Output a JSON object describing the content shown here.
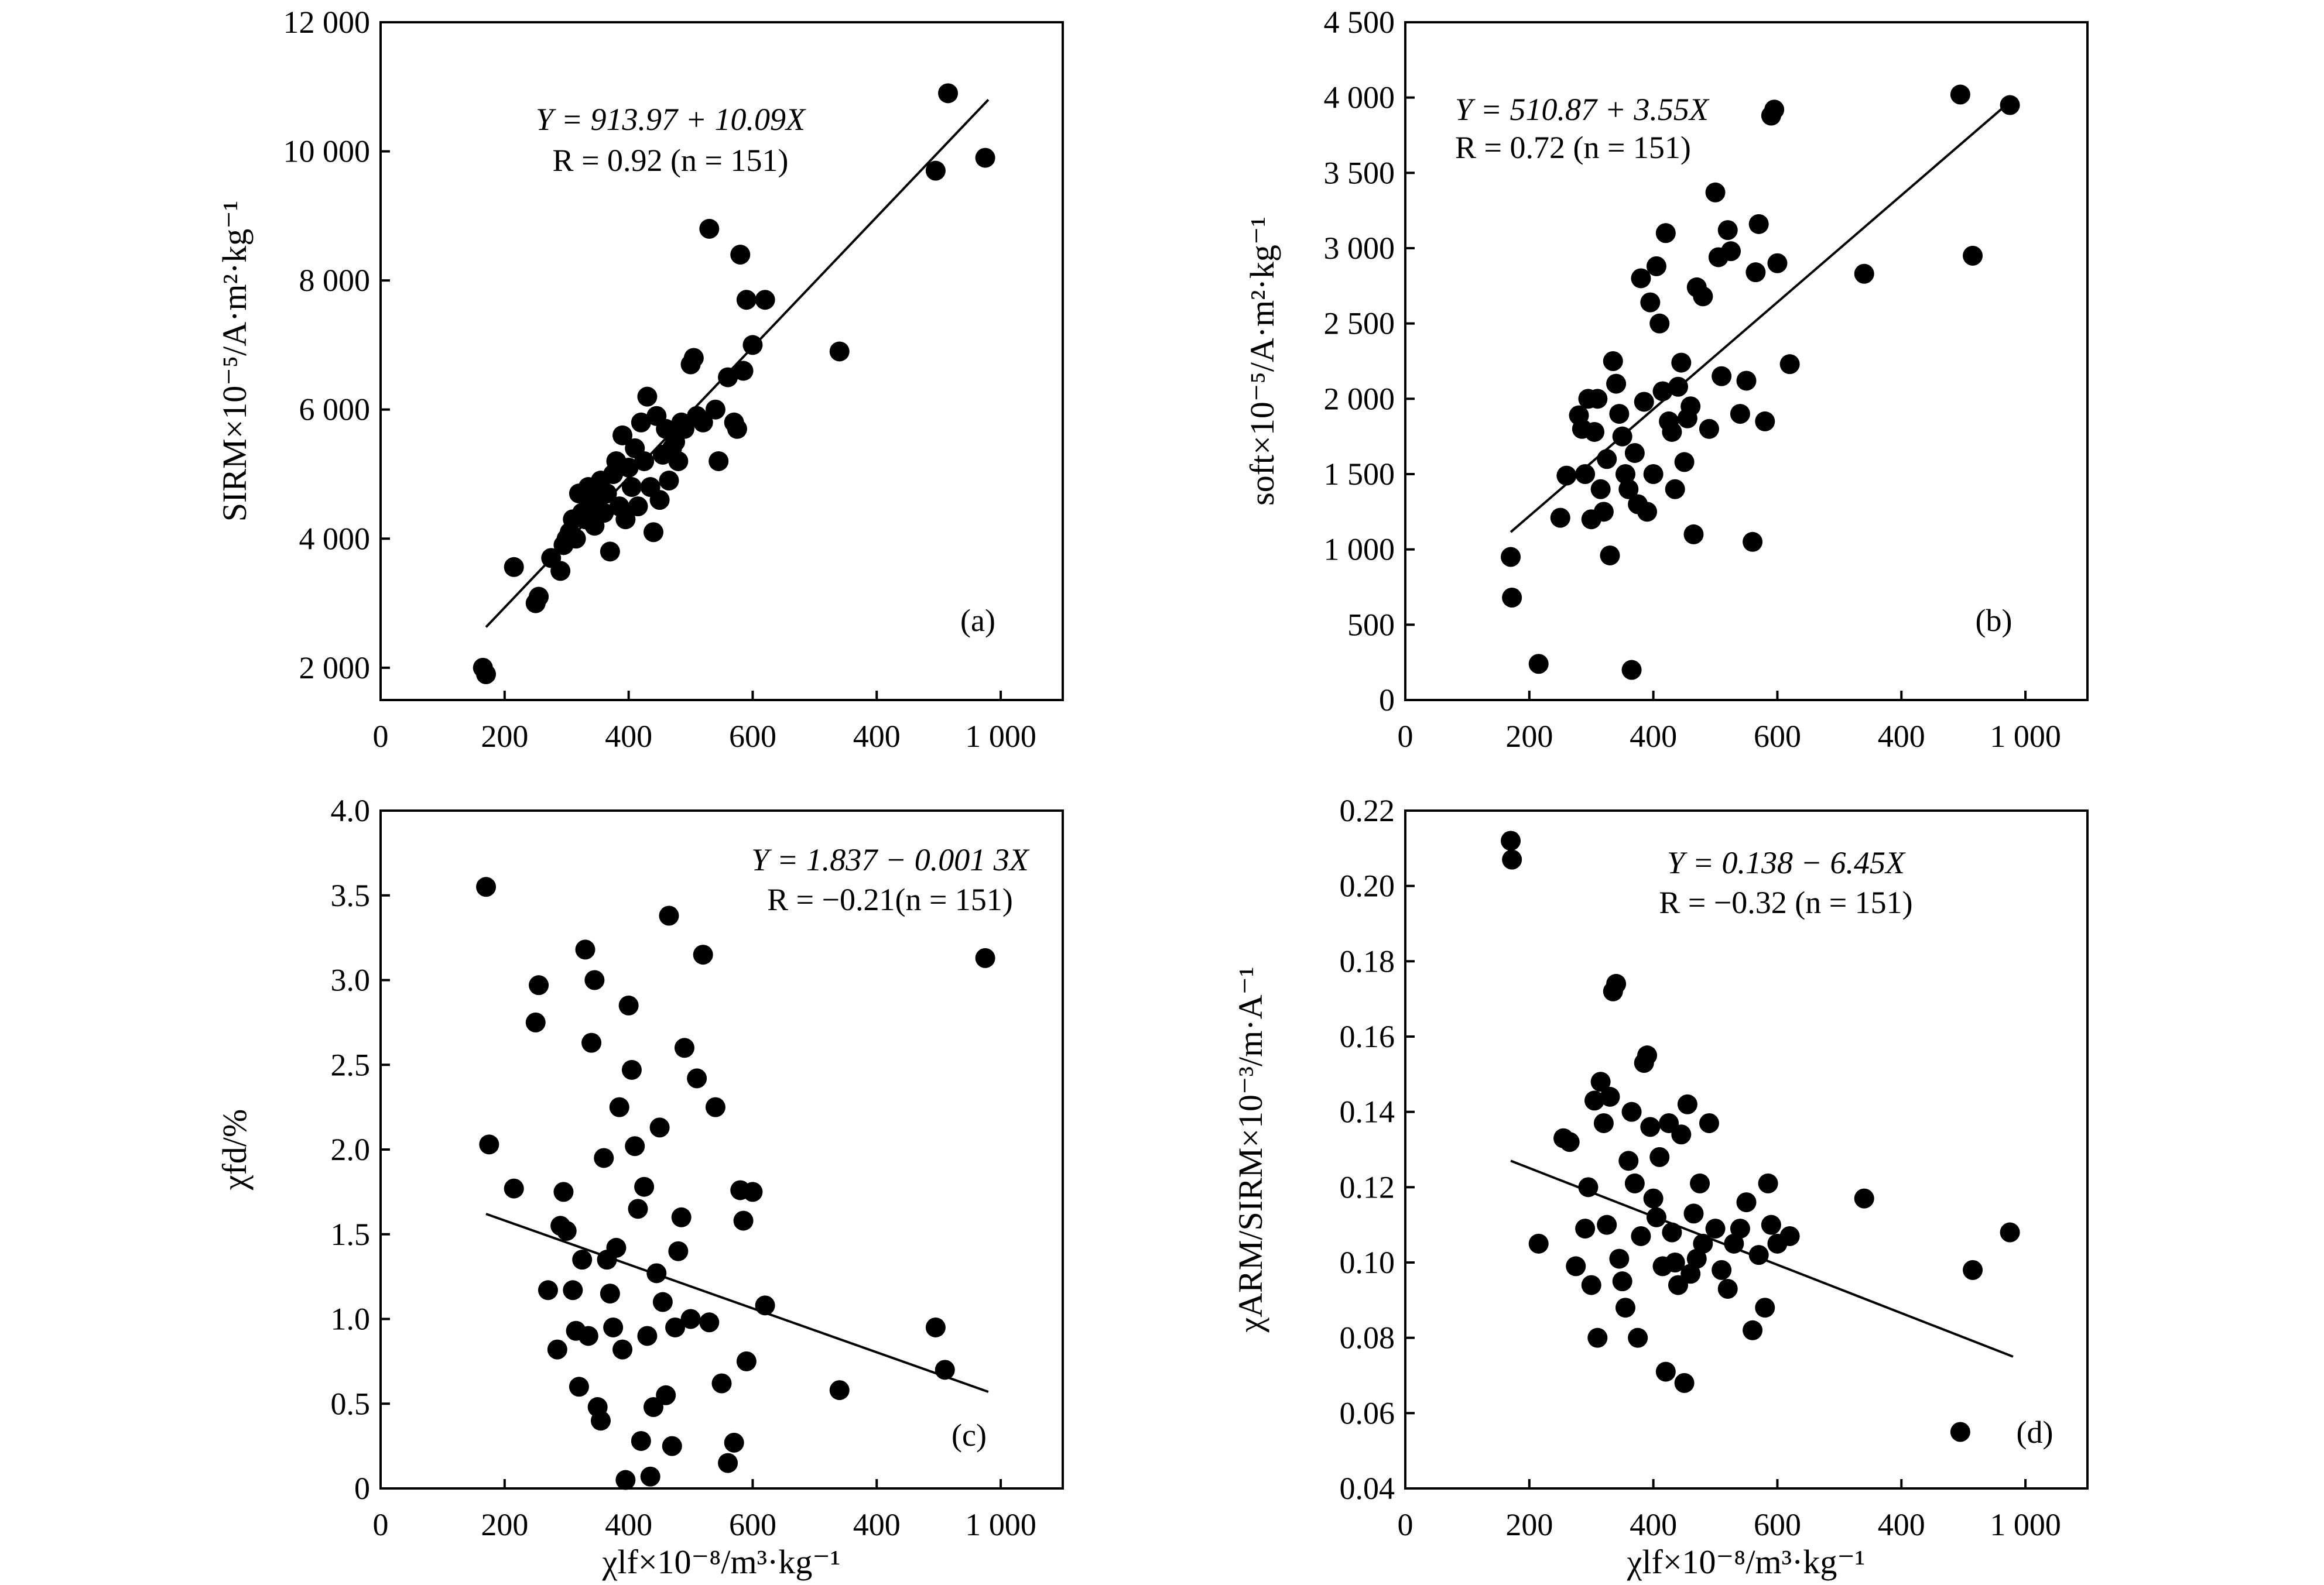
{
  "chart_data": [
    {
      "id": "a",
      "type": "scatter",
      "panel_label": "(a)",
      "title": "",
      "xlabel": "",
      "ylabel": "SIRM×10⁻⁵/A·m²·kg⁻¹",
      "x_ticks": [
        "0",
        "200",
        "400",
        "600",
        "400",
        "1 000"
      ],
      "xlim": [
        0,
        1100
      ],
      "y_ticks": [
        2000,
        4000,
        6000,
        8000,
        10000,
        12000
      ],
      "y_tick_labels": [
        "2 000",
        "4 000",
        "6 000",
        "8 000",
        "10 000",
        "12 000"
      ],
      "ylim": [
        1500,
        12000
      ],
      "equation": "Y = 913.97 + 10.09X",
      "stats": "R = 0.92 (n = 151)",
      "regression_line": {
        "x": [
          170,
          980
        ],
        "y": [
          2630,
          10800
        ]
      },
      "points": {
        "x": [
          165,
          170,
          215,
          250,
          255,
          275,
          290,
          295,
          300,
          305,
          310,
          315,
          320,
          325,
          330,
          335,
          340,
          345,
          350,
          355,
          360,
          365,
          370,
          375,
          380,
          385,
          390,
          395,
          400,
          405,
          410,
          415,
          420,
          425,
          430,
          435,
          440,
          445,
          450,
          455,
          460,
          465,
          470,
          475,
          480,
          485,
          490,
          500,
          505,
          510,
          520,
          530,
          540,
          545,
          560,
          570,
          575,
          580,
          585,
          590,
          600,
          620,
          740,
          895,
          915,
          975
        ],
        "y": [
          2000,
          1900,
          3560,
          3000,
          3100,
          3700,
          3500,
          3900,
          4000,
          4100,
          4300,
          4000,
          4700,
          4400,
          4300,
          4800,
          4600,
          4200,
          4500,
          4900,
          4400,
          4700,
          3800,
          5000,
          5200,
          4500,
          5600,
          4300,
          5100,
          4800,
          5400,
          4500,
          5800,
          5200,
          6200,
          4800,
          4100,
          5900,
          4600,
          5300,
          5700,
          4900,
          5400,
          5500,
          5200,
          5800,
          5700,
          6700,
          6800,
          5900,
          5800,
          8800,
          6000,
          5200,
          6500,
          5800,
          5700,
          8400,
          6600,
          7700,
          7000,
          7700,
          6900,
          9700,
          10900,
          9900
        ]
      }
    },
    {
      "id": "b",
      "type": "scatter",
      "panel_label": "(b)",
      "title": "",
      "xlabel": "",
      "ylabel": "soft×10⁻⁵/A·m²·kg⁻¹",
      "x_ticks": [
        "0",
        "200",
        "400",
        "600",
        "400",
        "1 000"
      ],
      "xlim": [
        0,
        1100
      ],
      "y_ticks": [
        0,
        500,
        1000,
        1500,
        2000,
        2500,
        3000,
        3500,
        4000,
        4500
      ],
      "y_tick_labels": [
        "0",
        "500",
        "1 000",
        "1 500",
        "2 000",
        "2 500",
        "3 000",
        "3 500",
        "4 000",
        "4 500"
      ],
      "ylim": [
        0,
        4500
      ],
      "equation": "Y = 510.87 + 3.55X",
      "stats": "R = 0.72 (n = 151)",
      "regression_line": {
        "x": [
          170,
          980
        ],
        "y": [
          1115,
          3990
        ]
      },
      "points": {
        "x": [
          170,
          172,
          215,
          250,
          260,
          280,
          285,
          290,
          295,
          300,
          305,
          310,
          315,
          320,
          325,
          330,
          335,
          340,
          345,
          350,
          355,
          360,
          365,
          370,
          375,
          380,
          385,
          390,
          395,
          400,
          405,
          410,
          415,
          420,
          425,
          430,
          435,
          440,
          445,
          450,
          455,
          460,
          465,
          470,
          480,
          490,
          500,
          505,
          510,
          520,
          525,
          540,
          550,
          560,
          565,
          570,
          580,
          590,
          595,
          600,
          620,
          740,
          895,
          915,
          975
        ],
        "y": [
          950,
          680,
          240,
          1210,
          1490,
          1890,
          1800,
          1500,
          2000,
          1200,
          1780,
          2000,
          1400,
          1250,
          1600,
          960,
          2250,
          2100,
          1900,
          1750,
          1500,
          1400,
          200,
          1640,
          1300,
          2800,
          1980,
          1250,
          2640,
          1500,
          2880,
          2500,
          2050,
          3100,
          1850,
          1780,
          1400,
          2080,
          2240,
          1580,
          1870,
          1950,
          1100,
          2740,
          2680,
          1800,
          3370,
          2940,
          2150,
          3120,
          2980,
          1900,
          2120,
          1050,
          2840,
          3160,
          1850,
          3880,
          3920,
          2900,
          2230,
          2830,
          4020,
          2950,
          3950
        ]
      }
    },
    {
      "id": "c",
      "type": "scatter",
      "panel_label": "(c)",
      "title": "",
      "xlabel": "χlf×10⁻⁸/m³·kg⁻¹",
      "ylabel": "χfd/%",
      "x_ticks": [
        "0",
        "200",
        "400",
        "600",
        "400",
        "1 000"
      ],
      "xlim": [
        0,
        1100
      ],
      "y_ticks": [
        0,
        0.5,
        1.0,
        1.5,
        2.0,
        2.5,
        3.0,
        3.5,
        4.0
      ],
      "y_tick_labels": [
        "0",
        "0.5",
        "1.0",
        "1.5",
        "2.0",
        "2.5",
        "3.0",
        "3.5",
        "4.0"
      ],
      "ylim": [
        0,
        4.0
      ],
      "equation": "Y = 1.837 − 0.001 3X",
      "stats": "R = −0.21(n = 151)",
      "regression_line": {
        "x": [
          170,
          980
        ],
        "y": [
          1.62,
          0.57
        ]
      },
      "points": {
        "x": [
          170,
          175,
          215,
          250,
          255,
          270,
          285,
          290,
          295,
          300,
          310,
          315,
          320,
          325,
          330,
          335,
          340,
          345,
          350,
          355,
          360,
          365,
          370,
          375,
          380,
          385,
          390,
          395,
          400,
          405,
          410,
          415,
          420,
          425,
          430,
          435,
          440,
          445,
          450,
          455,
          460,
          465,
          470,
          475,
          480,
          485,
          490,
          500,
          510,
          520,
          530,
          540,
          550,
          560,
          570,
          580,
          585,
          590,
          600,
          620,
          740,
          895,
          910,
          975
        ],
        "y": [
          3.55,
          2.03,
          1.77,
          2.75,
          2.97,
          1.17,
          0.82,
          1.55,
          1.75,
          1.52,
          1.17,
          0.93,
          0.6,
          1.35,
          3.18,
          0.9,
          2.63,
          3.0,
          0.48,
          0.4,
          1.95,
          1.35,
          1.15,
          0.95,
          1.42,
          2.25,
          0.82,
          0.05,
          2.85,
          2.47,
          2.02,
          1.65,
          0.28,
          1.78,
          0.9,
          0.07,
          0.48,
          1.27,
          2.13,
          1.1,
          0.55,
          3.38,
          0.25,
          0.95,
          1.4,
          1.6,
          2.6,
          1.0,
          2.42,
          3.15,
          0.98,
          2.25,
          0.62,
          0.15,
          0.27,
          1.76,
          1.58,
          0.75,
          1.75,
          1.08,
          0.58,
          0.95,
          0.7,
          3.13
        ]
      }
    },
    {
      "id": "d",
      "type": "scatter",
      "panel_label": "(d)",
      "title": "",
      "xlabel": "χlf×10⁻⁸/m³·kg⁻¹",
      "ylabel": "χARM/SIRM×10⁻³/m·A⁻¹",
      "x_ticks": [
        "0",
        "200",
        "400",
        "600",
        "400",
        "1 000"
      ],
      "xlim": [
        0,
        1100
      ],
      "y_ticks": [
        0.04,
        0.06,
        0.08,
        0.1,
        0.12,
        0.14,
        0.16,
        0.18,
        0.2,
        0.22
      ],
      "y_tick_labels": [
        "0.04",
        "0.06",
        "0.08",
        "0.10",
        "0.12",
        "0.14",
        "0.16",
        "0.18",
        "0.20",
        "0.22"
      ],
      "ylim": [
        0.04,
        0.22
      ],
      "equation": "Y = 0.138 − 6.45X",
      "stats": "R = −0.32 (n = 151)",
      "regression_line": {
        "x": [
          170,
          980
        ],
        "y": [
          0.127,
          0.075
        ]
      },
      "points": {
        "x": [
          170,
          172,
          215,
          255,
          265,
          275,
          290,
          295,
          300,
          305,
          310,
          315,
          320,
          325,
          330,
          335,
          340,
          345,
          350,
          355,
          360,
          365,
          370,
          375,
          380,
          385,
          390,
          395,
          400,
          405,
          410,
          415,
          420,
          425,
          430,
          435,
          440,
          445,
          450,
          455,
          460,
          465,
          470,
          475,
          480,
          490,
          500,
          510,
          520,
          530,
          540,
          550,
          560,
          570,
          580,
          585,
          590,
          600,
          620,
          740,
          895,
          915,
          975
        ],
        "y": [
          0.212,
          0.207,
          0.105,
          0.133,
          0.132,
          0.099,
          0.109,
          0.12,
          0.094,
          0.143,
          0.08,
          0.148,
          0.137,
          0.11,
          0.144,
          0.172,
          0.174,
          0.101,
          0.095,
          0.088,
          0.127,
          0.14,
          0.121,
          0.08,
          0.107,
          0.153,
          0.155,
          0.136,
          0.117,
          0.112,
          0.128,
          0.099,
          0.071,
          0.137,
          0.108,
          0.1,
          0.094,
          0.134,
          0.068,
          0.142,
          0.097,
          0.113,
          0.101,
          0.121,
          0.105,
          0.137,
          0.109,
          0.098,
          0.093,
          0.105,
          0.109,
          0.116,
          0.082,
          0.102,
          0.088,
          0.121,
          0.11,
          0.105,
          0.107,
          0.117,
          0.055,
          0.098,
          0.108
        ]
      }
    }
  ]
}
